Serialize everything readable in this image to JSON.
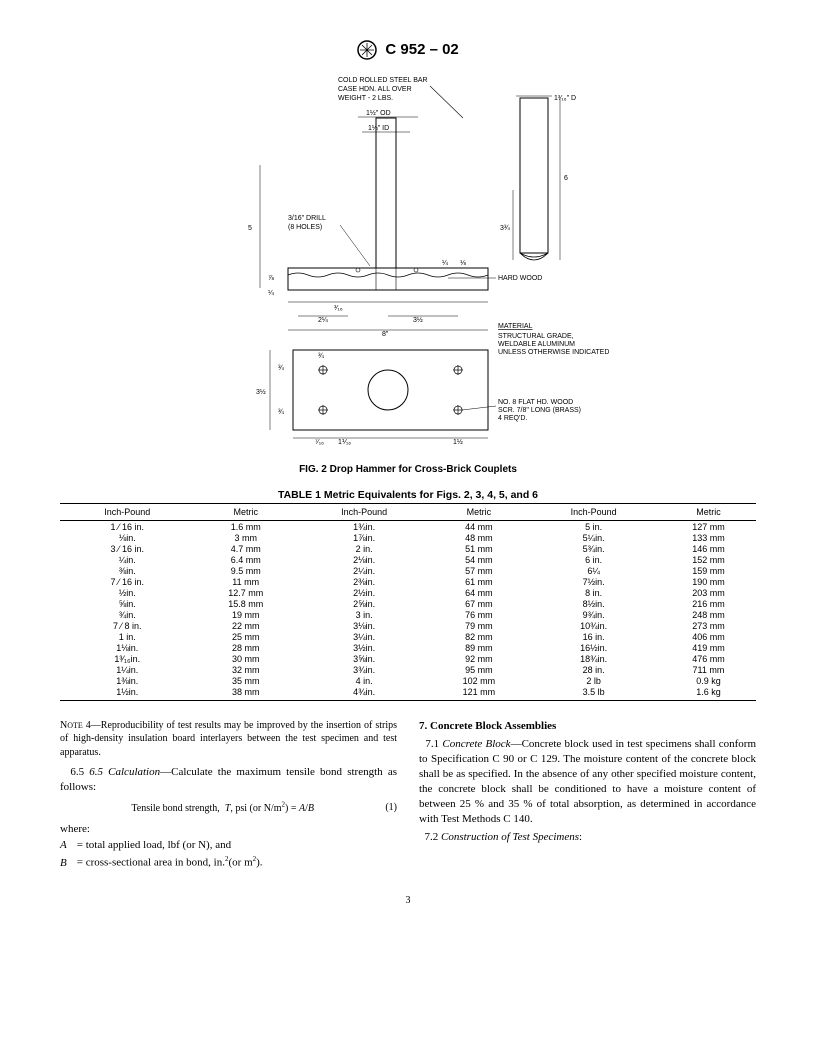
{
  "header": {
    "designation": "C 952 – 02"
  },
  "figure": {
    "caption": "FIG. 2 Drop Hammer for Cross-Brick Couplets",
    "labels": {
      "bar": "COLD ROLLED STEEL BAR CASE HDN. ALL OVER WEIGHT - 2 LBS.",
      "drill": "3/16\" DRILL (8 HOLES)",
      "hardwood": "HARD WOOD",
      "material_head": "MATERIAL",
      "material_body": "STRUCTURAL GRADE, WELDABLE ALUMINUM UNLESS OTHERWISE INDICATED",
      "screw": "NO. 8 FLAT HD. WOOD SCR. 7/8\" LONG (BRASS) 4 REQ'D."
    },
    "dims": {
      "od": "1½\" OD",
      "id": "1¼\" ID",
      "top_d": "1³⁄₁₆\" D",
      "h_right": "6",
      "h_right2": "3¾",
      "h5": "5",
      "a18": "⅛",
      "a316": "³⁄₁₆",
      "a78": "⅞",
      "a14": "¼",
      "a716": "⁷⁄₁₆",
      "w24": "2¼",
      "w35": "3½",
      "w8": "8\"",
      "a34": "¾",
      "w312": "3½",
      "w11": "1⅟₁₆",
      "w12": "1½"
    }
  },
  "table": {
    "title": "TABLE 1  Metric Equivalents for Figs. 2, 3, 4, 5, and 6",
    "headers": [
      "Inch-Pound",
      "Metric",
      "Inch-Pound",
      "Metric",
      "Inch-Pound",
      "Metric"
    ],
    "rows": [
      [
        "1 ⁄ 16 in.",
        "1.6 mm",
        "1¾in.",
        "44 mm",
        "5 in.",
        "127 mm"
      ],
      [
        "⅛in.",
        "3 mm",
        "1⅞in.",
        "48 mm",
        "5¼in.",
        "133 mm"
      ],
      [
        "3 ⁄ 16 in.",
        "4.7 mm",
        "2 in.",
        "51 mm",
        "5¾in.",
        "146 mm"
      ],
      [
        "¼in.",
        "6.4 mm",
        "2⅛in.",
        "54 mm",
        "6 in.",
        "152 mm"
      ],
      [
        "⅜in.",
        "9.5 mm",
        "2¼in.",
        "57 mm",
        "6¼",
        "159 mm"
      ],
      [
        "7 ⁄ 16 in.",
        "11 mm",
        "2⅜in.",
        "61 mm",
        "7½in.",
        "190 mm"
      ],
      [
        "½in.",
        "12.7 mm",
        "2½in.",
        "64 mm",
        "8 in.",
        "203 mm"
      ],
      [
        "⅝in.",
        "15.8 mm",
        "2⅝in.",
        "67 mm",
        "8½in.",
        "216 mm"
      ],
      [
        "¾in.",
        "19 mm",
        "3 in.",
        "76 mm",
        "9¾in.",
        "248 mm"
      ],
      [
        "7 ⁄ 8 in.",
        "22 mm",
        "3⅛in.",
        "79 mm",
        "10¾in.",
        "273 mm"
      ],
      [
        "1 in.",
        "25 mm",
        "3¼in.",
        "82 mm",
        "16 in.",
        "406 mm"
      ],
      [
        "1⅛in.",
        "28 mm",
        "3½in.",
        "89 mm",
        "16½in.",
        "419 mm"
      ],
      [
        "1³⁄₁₆in.",
        "30 mm",
        "3⅝in.",
        "92 mm",
        "18¾in.",
        "476 mm"
      ],
      [
        "1¼in.",
        "32 mm",
        "3¾in.",
        "95 mm",
        "28 in.",
        "711 mm"
      ],
      [
        "1⅜in.",
        "35 mm",
        "4 in.",
        "102 mm",
        "2 lb",
        "0.9 kg"
      ],
      [
        "1½in.",
        "38 mm",
        "4¾in.",
        "121 mm",
        "3.5 lb",
        "1.6 kg"
      ]
    ]
  },
  "left_col": {
    "note": "NOTE 4—Reproducibility of test results may be improved by the insertion of strips of high-density insulation board interlayers between the test specimen and test apparatus.",
    "calc_head": "6.5 Calculation",
    "calc_body": "—Calculate the maximum tensile bond strength as follows:",
    "eqn": "Tensile bond strength,  T, psi (or N/m²) = A/B",
    "eqn_num": "(1)",
    "where": "where:",
    "A": "= total applied load, lbf (or N), and",
    "B": "= cross-sectional area in bond, in.²(or m²)."
  },
  "right_col": {
    "sec7": "7. Concrete Block Assemblies",
    "p71_lead": "7.1 Concrete Block",
    "p71": "—Concrete block used in test specimens shall conform to Specification C 90 or C 129. The moisture content of the concrete block shall be as specified. In the absence of any other specified moisture content, the concrete block shall be conditioned to have a moisture content of between 25 % and 35 % of total absorption, as determined in accordance with Test Methods C 140.",
    "p72_lead": "7.2 Construction of Test Specimens",
    "p72": ":"
  },
  "page_number": "3"
}
